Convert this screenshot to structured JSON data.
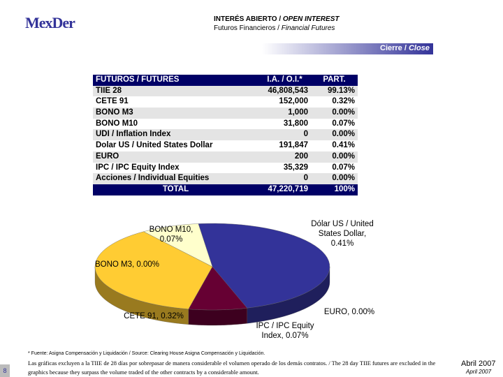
{
  "logo": "MexDer",
  "header": {
    "title_es": "INTERÉS ABIERTO / ",
    "title_en": "OPEN INTEREST",
    "subtitle_es": "Futuros Financieros / ",
    "subtitle_en": "Financial Futures",
    "badge_es": "Cierre / ",
    "badge_en": "Close"
  },
  "table": {
    "header": [
      "FUTUROS / FUTURES",
      "I.A. / O.I.*",
      "PART."
    ],
    "rows": [
      [
        "TIIE 28",
        "46,808,543",
        "99.13%"
      ],
      [
        "CETE 91",
        "152,000",
        "0.32%"
      ],
      [
        "BONO M3",
        "1,000",
        "0.00%"
      ],
      [
        "BONO M10",
        "31,800",
        "0.07%"
      ],
      [
        "UDI / Inflation Index",
        "0",
        "0.00%"
      ],
      [
        "Dolar US / United States Dollar",
        "191,847",
        "0.41%"
      ],
      [
        "EURO",
        "200",
        "0.00%"
      ],
      [
        "IPC / IPC Equity Index",
        "35,329",
        "0.07%"
      ],
      [
        "Acciones / Individual Equities",
        "0",
        "0.00%"
      ]
    ],
    "total": [
      "TOTAL",
      "47,220,719",
      "100%"
    ]
  },
  "chart_data": {
    "type": "pie",
    "labels": [
      [
        "Dólar US / United",
        "States Dollar,",
        "0.41%"
      ],
      [
        "EURO, 0.00%"
      ],
      [
        "IPC / IPC Equity",
        "Index, 0.07%"
      ],
      [
        "CETE 91, 0.32%"
      ],
      [
        "BONO M3, 0.00%"
      ],
      [
        "BONO M10,",
        "0.07%"
      ]
    ],
    "values": [
      0.41,
      0.0,
      0.07,
      0.32,
      0.0,
      0.07
    ],
    "colors": [
      "#333399",
      "#99ccff",
      "#660033",
      "#ffcc33",
      "#ffffcc",
      "#ffffcc"
    ]
  },
  "footer": {
    "source": "* Fuente: Asigna Compensación y Liquidación / Source: Clearing House Asigna Compensación y Liquidación.",
    "note": "Las gráficas excluyen a la TIIE de 28 días por sobrepasar de manera considerable el volumen operado de los demás contratos. / The 28 day TIIE futures are excluded in the graphics because they surpass the volume traded of the other contracts by a considerable amount.",
    "date_es": "Abril 2007",
    "date_en": "April 2007",
    "page": "8"
  }
}
